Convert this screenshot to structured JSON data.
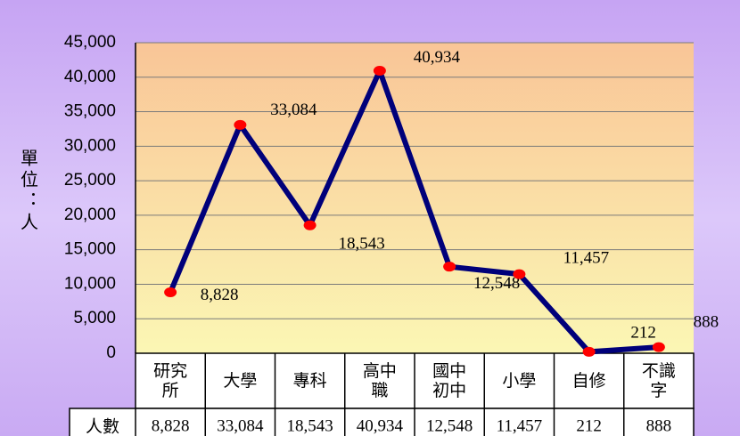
{
  "chart_data": {
    "type": "line",
    "y_label": "單位：人",
    "categories": [
      "研究所",
      "大學",
      "專科",
      "高中職",
      "國中初中",
      "小學",
      "自修",
      "不識字"
    ],
    "values": [
      8828,
      33084,
      18543,
      40934,
      12548,
      11457,
      212,
      888
    ],
    "value_labels": [
      "8,828",
      "33,084",
      "18,543",
      "40,934",
      "12,548",
      "11,457",
      "212",
      "888"
    ],
    "color": "#00007a",
    "marker_color": "#ff0000",
    "ylim": [
      0,
      45000
    ],
    "yticks": [
      0,
      {
        "value": 5000,
        "label": "5,000"
      },
      {
        "value": 10000,
        "label": "10,000"
      },
      {
        "value": 15000,
        "label": "15,000"
      },
      {
        "value": 20000,
        "label": "20,000"
      },
      {
        "value": 25000,
        "label": "25,000"
      },
      {
        "value": 30000,
        "label": "30,000"
      },
      {
        "value": 35000,
        "label": "35,000"
      },
      {
        "value": 40000,
        "label": "40,000"
      },
      {
        "value": 45000,
        "label": "45,000"
      }
    ],
    "grid": true,
    "table_row_header": "人數"
  }
}
